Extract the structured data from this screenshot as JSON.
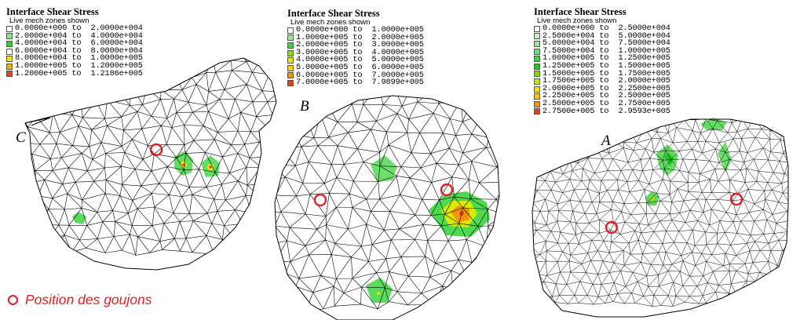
{
  "legend_c": {
    "title": "Interface Shear Stress",
    "subtitle": "Live mech zones shown",
    "rows": [
      {
        "text": "0.0000e+000 to  2.0000e+004",
        "color": "#ffffff"
      },
      {
        "text": "2.0000e+004 to  4.0000e+004",
        "color": "#8fe38b"
      },
      {
        "text": "4.0000e+004 to  6.0000e+004",
        "color": "#2fcf2f"
      },
      {
        "text": "6.0000e+004 to  8.0000e+004",
        "color": "#ffffff"
      },
      {
        "text": "8.0000e+004 to  1.0000e+005",
        "color": "#f2e600"
      },
      {
        "text": "1.0000e+005 to  1.2000e+005",
        "color": "#f7b000"
      },
      {
        "text": "1.2000e+005 to  1.2186e+005",
        "color": "#e2421a"
      }
    ]
  },
  "legend_b": {
    "title": "Interface Shear Stress",
    "subtitle": "Live mech zones shown",
    "rows": [
      {
        "text": "0.0000e+000 to  1.0000e+005",
        "color": "#ffffff"
      },
      {
        "text": "1.0000e+005 to  2.0000e+005",
        "color": "#9be69a"
      },
      {
        "text": "2.0000e+005 to  3.0000e+005",
        "color": "#3ed43e"
      },
      {
        "text": "3.0000e+005 to  4.0000e+005",
        "color": "#8ee000"
      },
      {
        "text": "4.0000e+005 to  5.0000e+005",
        "color": "#d9ec00"
      },
      {
        "text": "5.0000e+005 to  6.0000e+005",
        "color": "#ffd000"
      },
      {
        "text": "6.0000e+005 to  7.0000e+005",
        "color": "#f79400"
      },
      {
        "text": "7.0000e+005 to  7.9899e+005",
        "color": "#e2421a"
      }
    ]
  },
  "legend_a": {
    "title": "Interface Shear Stress",
    "subtitle": "Live mech zones shown",
    "rows": [
      {
        "text": "0.0000e+000 to  2.5000e+004",
        "color": "#ffffff"
      },
      {
        "text": "2.5000e+004 to  5.0000e+004",
        "color": "#c8f0c4"
      },
      {
        "text": "5.0000e+004 to  7.5000e+004",
        "color": "#9be69a"
      },
      {
        "text": "7.5000e+004 to  1.0000e+005",
        "color": "#6edc6e"
      },
      {
        "text": "1.0000e+005 to  1.2500e+005",
        "color": "#3ed43e"
      },
      {
        "text": "1.2500e+005 to  1.5000e+005",
        "color": "#1ec81e"
      },
      {
        "text": "1.5000e+005 to  1.7500e+005",
        "color": "#7cdc00"
      },
      {
        "text": "1.7500e+005 to  2.0000e+005",
        "color": "#c8e800"
      },
      {
        "text": "2.0000e+005 to  2.2500e+005",
        "color": "#f2e600"
      },
      {
        "text": "2.2500e+005 to  2.5000e+005",
        "color": "#ffc400"
      },
      {
        "text": "2.5000e+005 to  2.7500e+005",
        "color": "#f79400"
      },
      {
        "text": "2.7500e+005 to  2.9593e+005",
        "color": "#e2421a"
      }
    ]
  },
  "labels": {
    "c": "C",
    "b": "B",
    "a": "A"
  },
  "note": {
    "text": "Position des goujons"
  },
  "colors": {
    "stud_ring": "#e01e25",
    "mesh_line": "#000000"
  }
}
